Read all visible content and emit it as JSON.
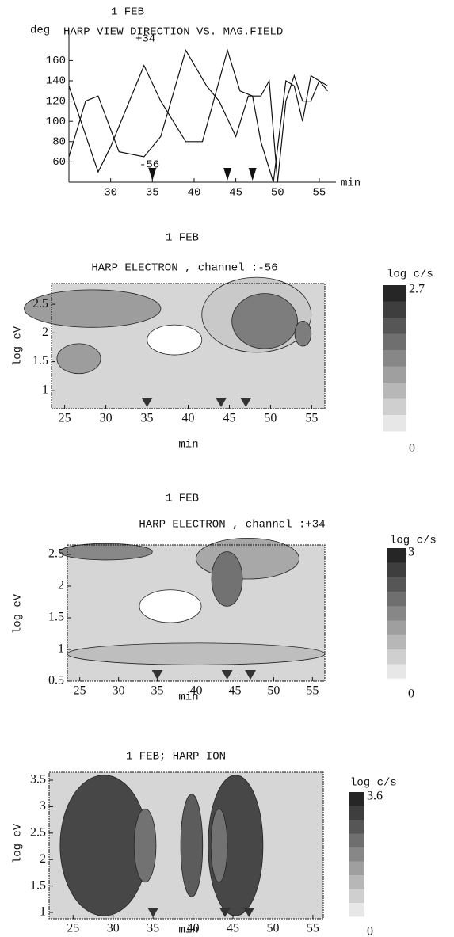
{
  "chart_data": [
    {
      "type": "line",
      "title": "1 FEB",
      "subtitle": "HARP VIEW DIRECTION VS. MAG.FIELD",
      "ylabel": "deg",
      "xlabel": "min",
      "xlim": [
        25,
        57
      ],
      "ylim": [
        40,
        190
      ],
      "xticks": [
        30,
        35,
        40,
        45,
        50,
        55
      ],
      "yticks": [
        60,
        80,
        100,
        120,
        140,
        160
      ],
      "color": "#111111",
      "annotations": [
        "+34",
        "-56"
      ],
      "markers": [
        35,
        44,
        47
      ],
      "series": [
        {
          "x": [
            25,
            28.5,
            30,
            34,
            36,
            39,
            41,
            44,
            45.5,
            47,
            48,
            49.5,
            51,
            52,
            53,
            54,
            55,
            56
          ],
          "values": [
            135,
            50,
            75,
            155,
            120,
            80,
            80,
            170,
            130,
            125,
            80,
            40,
            140,
            135,
            100,
            145,
            140,
            130
          ]
        },
        {
          "x": [
            25,
            27,
            28.5,
            31,
            34,
            36,
            39,
            41.5,
            43,
            45,
            46.5,
            48,
            49,
            50,
            51,
            52,
            53,
            54,
            55,
            56
          ],
          "values": [
            65,
            120,
            125,
            70,
            65,
            85,
            170,
            135,
            120,
            85,
            125,
            125,
            140,
            40,
            120,
            145,
            120,
            120,
            140,
            135
          ]
        }
      ]
    },
    {
      "type": "contour",
      "title": "1 FEB",
      "subtitle": "HARP ELECTRON , channel :-56",
      "xlabel": "min",
      "ylabel": "log eV",
      "xlim": [
        23.4,
        56.6
      ],
      "ylim": [
        0.68,
        2.86
      ],
      "xticks": [
        25,
        30,
        35,
        40,
        45,
        50,
        55
      ],
      "yticks": [
        1,
        1.5,
        2,
        2.5
      ],
      "markers": [
        35,
        44,
        47
      ],
      "colorbar": {
        "label": "log c/s",
        "lim": [
          0,
          2.7
        ]
      }
    },
    {
      "type": "contour",
      "title": "1 FEB",
      "subtitle": "HARP ELECTRON , channel :+34",
      "xlabel": "min",
      "ylabel": "log eV",
      "xlim": [
        23.4,
        56.6
      ],
      "ylim": [
        0.5,
        2.65
      ],
      "xticks": [
        25,
        30,
        35,
        40,
        45,
        50,
        55
      ],
      "yticks": [
        0.5,
        1,
        1.5,
        2,
        2.5
      ],
      "markers": [
        35,
        44,
        47
      ],
      "colorbar": {
        "label": "log c/s",
        "lim": [
          0,
          3
        ]
      }
    },
    {
      "type": "contour",
      "title": "1 FEB; HARP ION",
      "xlabel": "min",
      "ylabel": "log eV",
      "xlim": [
        22,
        56.3
      ],
      "ylim": [
        0.88,
        3.65
      ],
      "xticks": [
        25,
        30,
        35,
        40,
        45,
        50,
        55
      ],
      "yticks": [
        1,
        1.5,
        2,
        2.5,
        3,
        3.5
      ],
      "markers": [
        35,
        44,
        47
      ],
      "colorbar": {
        "label": "log c/s",
        "lim": [
          0,
          3.6
        ]
      }
    }
  ]
}
